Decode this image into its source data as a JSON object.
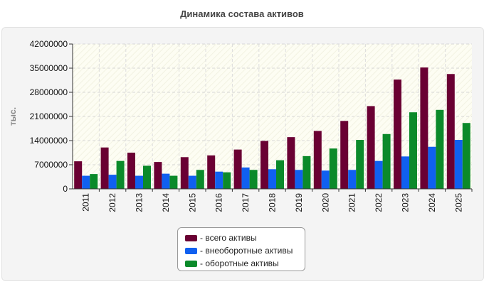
{
  "title": "Динамика состава активов",
  "colors": {
    "series": [
      "#6a0033",
      "#1060f0",
      "#0b8a2a"
    ]
  },
  "legend": {
    "items": [
      "- всего активы",
      "- внеоборотные активы",
      "- оборотные активы"
    ]
  },
  "chart_data": {
    "type": "bar",
    "title": "Динамика состава активов",
    "xlabel": "",
    "ylabel": "тыс.",
    "categories": [
      "2011",
      "2012",
      "2013",
      "2014",
      "2015",
      "2016",
      "2017",
      "2018",
      "2019",
      "2020",
      "2021",
      "2022",
      "2023",
      "2024",
      "2025"
    ],
    "ylim": [
      0,
      42000000
    ],
    "yticks": [
      0,
      7000000,
      14000000,
      21000000,
      28000000,
      35000000,
      42000000
    ],
    "ytick_labels": [
      "0",
      "7000000",
      "14000000",
      "21000000",
      "28000000",
      "35000000",
      "42000000"
    ],
    "grid": true,
    "legend_position": "bottom",
    "series": [
      {
        "name": "всего активы",
        "values": [
          8000000,
          12000000,
          10500000,
          7800000,
          9200000,
          9700000,
          11400000,
          13900000,
          15000000,
          16800000,
          19700000,
          24000000,
          31700000,
          35200000,
          33300000
        ]
      },
      {
        "name": "внеоборотные активы",
        "values": [
          3800000,
          4100000,
          3800000,
          4400000,
          3800000,
          5000000,
          6200000,
          5700000,
          5500000,
          5300000,
          5500000,
          8100000,
          9400000,
          12200000,
          14200000
        ]
      },
      {
        "name": "оборотные активы",
        "values": [
          4300000,
          8100000,
          6700000,
          3800000,
          5500000,
          4800000,
          5500000,
          8300000,
          9500000,
          11700000,
          14200000,
          15900000,
          22200000,
          22900000,
          19100000
        ]
      }
    ]
  }
}
